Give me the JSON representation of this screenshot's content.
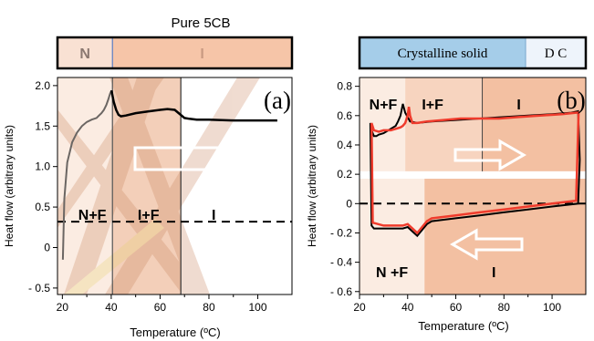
{
  "chart_data": [
    {
      "type": "line",
      "panel_label": "(a)",
      "title": "Pure 5CB",
      "xlabel": "Temperature (ºC)",
      "ylabel": "Heat flow (arbitrary units)",
      "xlim": [
        18,
        114
      ],
      "ylim": [
        -0.58,
        2.1
      ],
      "xticks": [
        20,
        40,
        60,
        80,
        100
      ],
      "yticks": [
        -0.5,
        0,
        0.5,
        1.0,
        1.5,
        2.0
      ],
      "ytick_labels": [
        "- 0.5",
        "0",
        "0.5",
        "1.0",
        "1.5",
        "2.0"
      ],
      "phase_bar": [
        {
          "label": "N",
          "range": [
            18,
            40.5
          ],
          "color": "#f9e1d3"
        },
        {
          "label": "I",
          "range": [
            40.5,
            114
          ],
          "color": "#f6c5a8"
        }
      ],
      "regions": [
        {
          "label": "N+F",
          "range": [
            18,
            40.5
          ],
          "color": "#fbece2"
        },
        {
          "label": "I+F",
          "range": [
            40.5,
            68.5
          ],
          "color": "#f3cfb9"
        },
        {
          "label": "I",
          "range": [
            68.5,
            114
          ],
          "color": "#ffffff"
        }
      ],
      "dashed_y": 0.32,
      "arrow_direction": "right",
      "series": [
        {
          "color": "#6b6663",
          "x": [
            20.2,
            20.8,
            22,
            24,
            26,
            28,
            30,
            32,
            34,
            35,
            36,
            37,
            38,
            38.8,
            39.5,
            40.1
          ],
          "values": [
            -0.15,
            0.6,
            1.05,
            1.3,
            1.42,
            1.5,
            1.55,
            1.58,
            1.6,
            1.63,
            1.66,
            1.7,
            1.76,
            1.83,
            1.9,
            1.94
          ]
        },
        {
          "color": "#000000",
          "x": [
            40.1,
            40.5,
            41,
            42,
            43,
            44,
            46,
            50,
            55,
            60,
            63,
            66,
            68,
            70,
            72,
            75,
            80,
            90,
            100,
            108
          ],
          "values": [
            1.94,
            1.88,
            1.8,
            1.7,
            1.64,
            1.62,
            1.63,
            1.66,
            1.68,
            1.7,
            1.71,
            1.7,
            1.65,
            1.6,
            1.59,
            1.58,
            1.58,
            1.57,
            1.57,
            1.57
          ]
        }
      ]
    },
    {
      "type": "line",
      "panel_label": "(b)",
      "xlabel": "Temperature (ºC)",
      "ylabel": "Heat flow (arbitrary units)",
      "xlim": [
        20,
        114
      ],
      "ylim": [
        -0.62,
        0.86
      ],
      "xticks": [
        20,
        40,
        60,
        80,
        100
      ],
      "yticks": [
        -0.6,
        -0.4,
        -0.2,
        0,
        0.2,
        0.4,
        0.6,
        0.8
      ],
      "ytick_labels": [
        "- 0.6",
        "- 0.4",
        "- 0.2",
        "0",
        "0.2",
        "0.4",
        "0.6",
        "0.8"
      ],
      "phase_bar": [
        {
          "label": "Crystalline solid",
          "range": [
            20,
            89
          ],
          "color": "#a5cde9"
        },
        {
          "label": "D C",
          "range": [
            89,
            114
          ],
          "color": "#eef4fb"
        }
      ],
      "regions_top": [
        {
          "label": "N+F",
          "range": [
            20,
            39
          ],
          "color": "#fbece2"
        },
        {
          "label": "I+F",
          "range": [
            39,
            71
          ],
          "color": "#f7d4bf"
        },
        {
          "label": "I",
          "range": [
            71,
            114
          ],
          "color": "#f3c0a2"
        }
      ],
      "regions_bottom": [
        {
          "label": "N +F",
          "range": [
            20,
            47
          ],
          "color": "#fbece2"
        },
        {
          "label": "I",
          "range": [
            47,
            114
          ],
          "color": "#f3c0a2"
        }
      ],
      "dashed_y": 0.0,
      "arrows": [
        "right",
        "left"
      ],
      "series": [
        {
          "color": "#ef3b2c",
          "x": [
            25,
            26,
            28,
            30,
            33,
            35,
            37,
            38,
            39,
            40,
            40.5,
            41,
            42,
            44,
            48,
            55,
            62,
            70,
            78,
            86,
            95,
            104,
            110,
            111,
            110,
            100,
            90,
            80,
            70,
            60,
            50,
            48,
            46,
            44,
            42,
            40,
            38,
            30,
            25.5,
            25
          ],
          "values": [
            0.55,
            0.5,
            0.49,
            0.5,
            0.5,
            0.51,
            0.52,
            0.53,
            0.55,
            0.6,
            0.66,
            0.6,
            0.55,
            0.55,
            0.56,
            0.57,
            0.58,
            0.58,
            0.58,
            0.59,
            0.6,
            0.61,
            0.62,
            0.62,
            0.02,
            0.0,
            -0.02,
            -0.04,
            -0.06,
            -0.08,
            -0.1,
            -0.12,
            -0.16,
            -0.2,
            -0.17,
            -0.14,
            -0.15,
            -0.15,
            -0.13,
            0.55
          ]
        },
        {
          "color": "#000000",
          "x": [
            24.5,
            25,
            26,
            27,
            28,
            30,
            32,
            34,
            35,
            36,
            37,
            37.5,
            38,
            39,
            41,
            44,
            50,
            60,
            70,
            80,
            90,
            100,
            108,
            110.8,
            111.5,
            110.8,
            100,
            90,
            80,
            70,
            60,
            50,
            48,
            46,
            44,
            42,
            40,
            38,
            30,
            26,
            25,
            24.5
          ],
          "values": [
            0.55,
            0.5,
            0.46,
            0.46,
            0.47,
            0.48,
            0.5,
            0.52,
            0.53,
            0.56,
            0.6,
            0.64,
            0.68,
            0.62,
            0.56,
            0.55,
            0.56,
            0.57,
            0.58,
            0.59,
            0.6,
            0.61,
            0.62,
            0.63,
            0.3,
            0.0,
            -0.02,
            -0.04,
            -0.06,
            -0.08,
            -0.1,
            -0.12,
            -0.14,
            -0.18,
            -0.22,
            -0.19,
            -0.16,
            -0.17,
            -0.17,
            -0.17,
            -0.15,
            0.55
          ]
        }
      ]
    }
  ]
}
